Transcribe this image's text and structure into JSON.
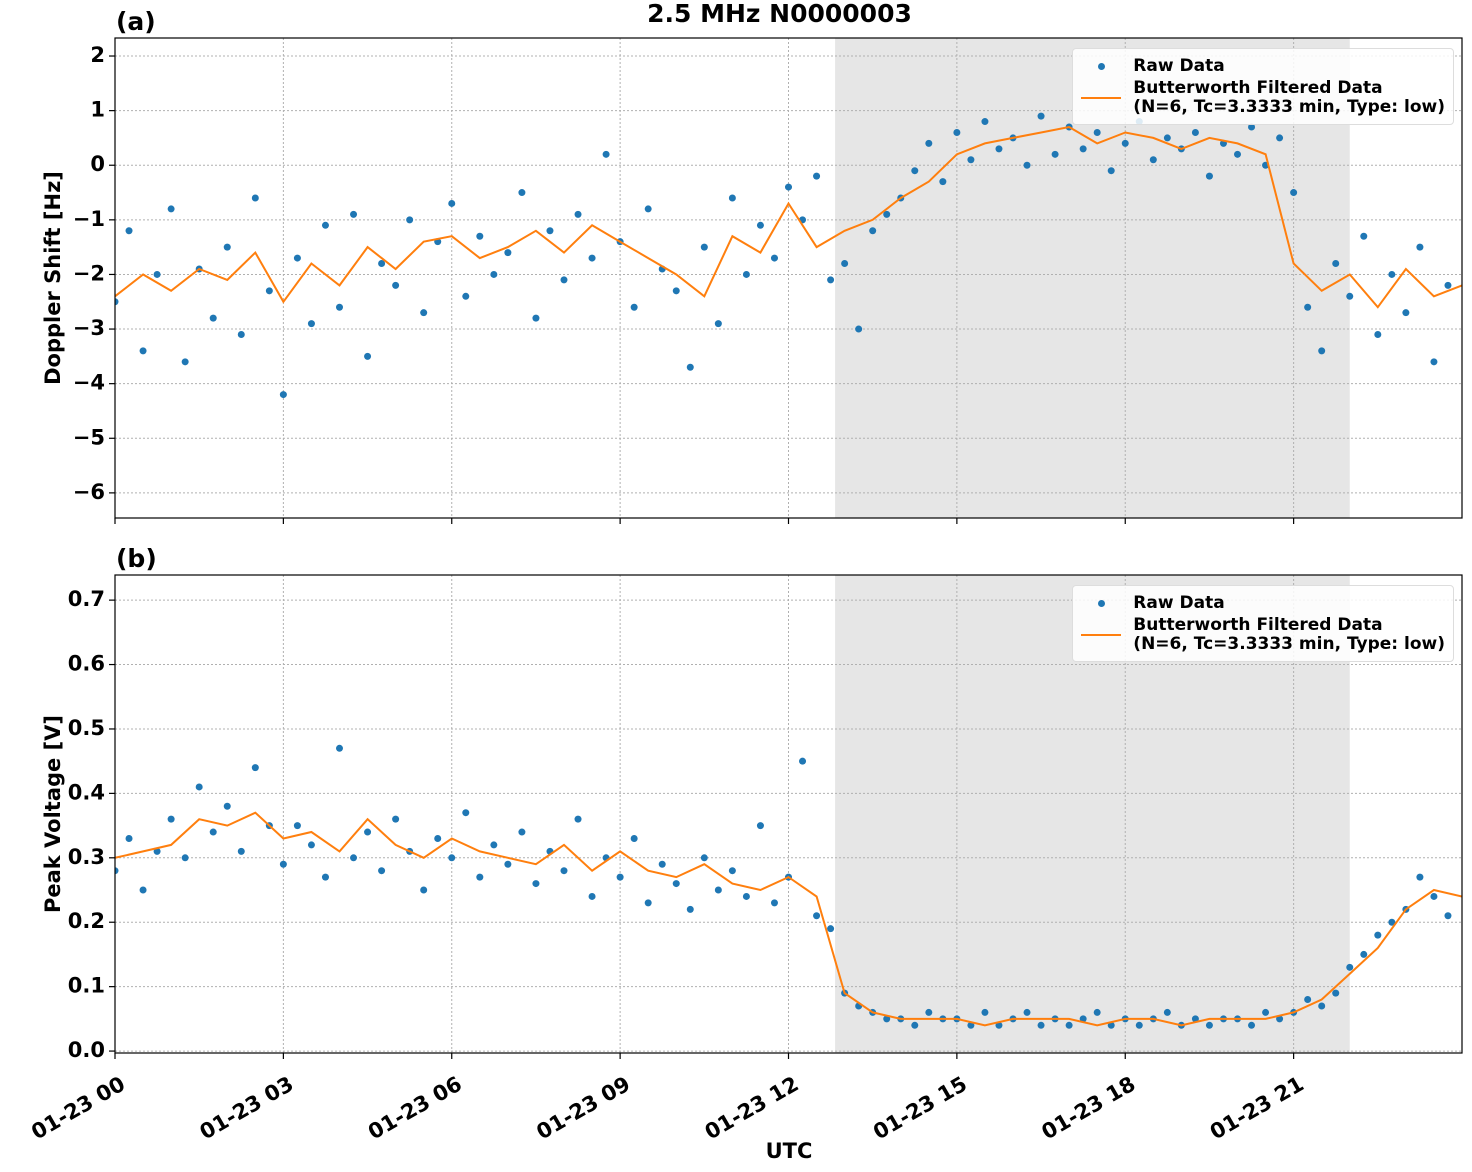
{
  "chart_data": [
    {
      "type": "scatter",
      "title": "2.5 MHz N0000003",
      "panel_label": "(a)",
      "y_label": "Doppler Shift [Hz]",
      "xlim": [
        0,
        24
      ],
      "xticks": [
        0,
        3,
        6,
        9,
        12,
        15,
        18,
        21
      ],
      "ylim": [
        -6.46,
        2.33
      ],
      "yticks": [
        {
          "value": -6,
          "label": "−6"
        },
        {
          "value": -5,
          "label": "−5"
        },
        {
          "value": -4,
          "label": "−4"
        },
        {
          "value": -3,
          "label": "−3"
        },
        {
          "value": -2,
          "label": "−2"
        },
        {
          "value": -1,
          "label": "−1"
        },
        0,
        1,
        2
      ],
      "grid": true,
      "legend": "upper right",
      "shaded_span": [
        12.83,
        22.0
      ],
      "series": [
        {
          "name": "Raw Data",
          "style": "marker",
          "color": "#1f77b4",
          "x": [
            0,
            0.25,
            0.5,
            0.75,
            1,
            1.25,
            1.5,
            1.75,
            2,
            2.25,
            2.5,
            2.75,
            3,
            3.25,
            3.5,
            3.75,
            4,
            4.25,
            4.5,
            4.75,
            5,
            5.25,
            5.5,
            5.75,
            6,
            6.25,
            6.5,
            6.75,
            7,
            7.25,
            7.5,
            7.75,
            8,
            8.25,
            8.5,
            8.75,
            9,
            9.25,
            9.5,
            9.75,
            10,
            10.25,
            10.5,
            10.75,
            11,
            11.25,
            11.5,
            11.75,
            12,
            12.25,
            12.5,
            12.75,
            13,
            13.25,
            13.5,
            13.75,
            14,
            14.25,
            14.5,
            14.75,
            15,
            15.25,
            15.5,
            15.75,
            16,
            16.25,
            16.5,
            16.75,
            17,
            17.25,
            17.5,
            17.75,
            18,
            18.25,
            18.5,
            18.75,
            19,
            19.25,
            19.5,
            19.75,
            20,
            20.25,
            20.5,
            20.75,
            21,
            21.25,
            21.5,
            21.75,
            22,
            22.25,
            22.5,
            22.75,
            23,
            23.25,
            23.5,
            23.75
          ],
          "values": [
            -2.5,
            -1.2,
            -3.4,
            -2.0,
            -0.8,
            -3.6,
            -1.9,
            -2.8,
            -1.5,
            -3.1,
            -0.6,
            -2.3,
            -4.2,
            -1.7,
            -2.9,
            -1.1,
            -2.6,
            -0.9,
            -3.5,
            -1.8,
            -2.2,
            -1.0,
            -2.7,
            -1.4,
            -0.7,
            -2.4,
            -1.3,
            -2.0,
            -1.6,
            -0.5,
            -2.8,
            -1.2,
            -2.1,
            -0.9,
            -1.7,
            0.2,
            -1.4,
            -2.6,
            -0.8,
            -1.9,
            -2.3,
            -3.7,
            -1.5,
            -2.9,
            -0.6,
            -2.0,
            -1.1,
            -1.7,
            -0.4,
            -1.0,
            -0.2,
            -2.1,
            -1.8,
            -3.0,
            -1.2,
            -0.9,
            -0.6,
            -0.1,
            0.4,
            -0.3,
            0.6,
            0.1,
            0.8,
            0.3,
            0.5,
            0.0,
            0.9,
            0.2,
            0.7,
            0.3,
            0.6,
            -0.1,
            0.4,
            0.8,
            0.1,
            0.5,
            0.3,
            0.6,
            -0.2,
            0.4,
            0.2,
            0.7,
            0.0,
            0.5,
            -0.5,
            -2.6,
            -3.4,
            -1.8,
            -2.4,
            -1.3,
            -3.1,
            -2.0,
            -2.7,
            -1.5,
            -3.6,
            -2.2
          ]
        },
        {
          "name": "Butterworth Filtered Data\n(N=6, Tc=3.3333 min, Type: low)",
          "style": "line",
          "color": "#ff7f0e",
          "x": [
            0,
            0.5,
            1,
            1.5,
            2,
            2.5,
            3,
            3.5,
            4,
            4.5,
            5,
            5.5,
            6,
            6.5,
            7,
            7.5,
            8,
            8.5,
            9,
            9.5,
            10,
            10.5,
            11,
            11.5,
            12,
            12.5,
            13,
            13.5,
            14,
            14.5,
            15,
            15.5,
            16,
            16.5,
            17,
            17.5,
            18,
            18.5,
            19,
            19.5,
            20,
            20.5,
            21,
            21.5,
            22,
            22.5,
            23,
            23.5,
            24
          ],
          "values": [
            -2.4,
            -2.0,
            -2.3,
            -1.9,
            -2.1,
            -1.6,
            -2.5,
            -1.8,
            -2.2,
            -1.5,
            -1.9,
            -1.4,
            -1.3,
            -1.7,
            -1.5,
            -1.2,
            -1.6,
            -1.1,
            -1.4,
            -1.7,
            -2.0,
            -2.4,
            -1.3,
            -1.6,
            -0.7,
            -1.5,
            -1.2,
            -1.0,
            -0.6,
            -0.3,
            0.2,
            0.4,
            0.5,
            0.6,
            0.7,
            0.4,
            0.6,
            0.5,
            0.3,
            0.5,
            0.4,
            0.2,
            -1.8,
            -2.3,
            -2.0,
            -2.6,
            -1.9,
            -2.4,
            -2.2
          ]
        }
      ]
    },
    {
      "type": "scatter",
      "panel_label": "(b)",
      "y_label": "Peak Voltage [V]",
      "x_label": "UTC",
      "xlim": [
        0,
        24
      ],
      "xticks": [
        {
          "value": 0,
          "label": "01-23 00"
        },
        {
          "value": 3,
          "label": "01-23 03"
        },
        {
          "value": 6,
          "label": "01-23 06"
        },
        {
          "value": 9,
          "label": "01-23 09"
        },
        {
          "value": 12,
          "label": "01-23 12"
        },
        {
          "value": 15,
          "label": "01-23 15"
        },
        {
          "value": 18,
          "label": "01-23 18"
        },
        {
          "value": 21,
          "label": "01-23 21"
        }
      ],
      "ylim": [
        -0.003,
        0.739
      ],
      "yticks": [
        {
          "value": 0,
          "label": "0.0"
        },
        0.1,
        0.2,
        0.3,
        0.4,
        0.5,
        0.6,
        0.7
      ],
      "grid": true,
      "legend": "upper right",
      "shaded_span": [
        12.83,
        22.0
      ],
      "series": [
        {
          "name": "Raw Data",
          "style": "marker",
          "color": "#1f77b4",
          "x": [
            0,
            0.25,
            0.5,
            0.75,
            1,
            1.25,
            1.5,
            1.75,
            2,
            2.25,
            2.5,
            2.75,
            3,
            3.25,
            3.5,
            3.75,
            4,
            4.25,
            4.5,
            4.75,
            5,
            5.25,
            5.5,
            5.75,
            6,
            6.25,
            6.5,
            6.75,
            7,
            7.25,
            7.5,
            7.75,
            8,
            8.25,
            8.5,
            8.75,
            9,
            9.25,
            9.5,
            9.75,
            10,
            10.25,
            10.5,
            10.75,
            11,
            11.25,
            11.5,
            11.75,
            12,
            12.25,
            12.5,
            12.75,
            13,
            13.25,
            13.5,
            13.75,
            14,
            14.25,
            14.5,
            14.75,
            15,
            15.25,
            15.5,
            15.75,
            16,
            16.25,
            16.5,
            16.75,
            17,
            17.25,
            17.5,
            17.75,
            18,
            18.25,
            18.5,
            18.75,
            19,
            19.25,
            19.5,
            19.75,
            20,
            20.25,
            20.5,
            20.75,
            21,
            21.25,
            21.5,
            21.75,
            22,
            22.25,
            22.5,
            22.75,
            23,
            23.25,
            23.5,
            23.75
          ],
          "values": [
            0.28,
            0.33,
            0.25,
            0.31,
            0.36,
            0.3,
            0.41,
            0.34,
            0.38,
            0.31,
            0.44,
            0.35,
            0.29,
            0.35,
            0.32,
            0.27,
            0.47,
            0.3,
            0.34,
            0.28,
            0.36,
            0.31,
            0.25,
            0.33,
            0.3,
            0.37,
            0.27,
            0.32,
            0.29,
            0.34,
            0.26,
            0.31,
            0.28,
            0.36,
            0.24,
            0.3,
            0.27,
            0.33,
            0.23,
            0.29,
            0.26,
            0.22,
            0.3,
            0.25,
            0.28,
            0.24,
            0.35,
            0.23,
            0.27,
            0.45,
            0.21,
            0.19,
            0.09,
            0.07,
            0.06,
            0.05,
            0.05,
            0.04,
            0.06,
            0.05,
            0.05,
            0.04,
            0.06,
            0.04,
            0.05,
            0.06,
            0.04,
            0.05,
            0.04,
            0.05,
            0.06,
            0.04,
            0.05,
            0.04,
            0.05,
            0.06,
            0.04,
            0.05,
            0.04,
            0.05,
            0.05,
            0.04,
            0.06,
            0.05,
            0.06,
            0.08,
            0.07,
            0.09,
            0.13,
            0.15,
            0.18,
            0.2,
            0.22,
            0.27,
            0.24,
            0.21
          ]
        },
        {
          "name": "Butterworth Filtered Data\n(N=6, Tc=3.3333 min, Type: low)",
          "style": "line",
          "color": "#ff7f0e",
          "x": [
            0,
            0.5,
            1,
            1.5,
            2,
            2.5,
            3,
            3.5,
            4,
            4.5,
            5,
            5.5,
            6,
            6.5,
            7,
            7.5,
            8,
            8.5,
            9,
            9.5,
            10,
            10.5,
            11,
            11.5,
            12,
            12.5,
            13,
            13.5,
            14,
            14.5,
            15,
            15.5,
            16,
            16.5,
            17,
            17.5,
            18,
            18.5,
            19,
            19.5,
            20,
            20.5,
            21,
            21.5,
            22,
            22.5,
            23,
            23.5,
            24
          ],
          "values": [
            0.3,
            0.31,
            0.32,
            0.36,
            0.35,
            0.37,
            0.33,
            0.34,
            0.31,
            0.36,
            0.32,
            0.3,
            0.33,
            0.31,
            0.3,
            0.29,
            0.32,
            0.28,
            0.31,
            0.28,
            0.27,
            0.29,
            0.26,
            0.25,
            0.27,
            0.24,
            0.09,
            0.06,
            0.05,
            0.05,
            0.05,
            0.04,
            0.05,
            0.05,
            0.05,
            0.04,
            0.05,
            0.05,
            0.04,
            0.05,
            0.05,
            0.05,
            0.06,
            0.08,
            0.12,
            0.16,
            0.22,
            0.25,
            0.24
          ]
        }
      ]
    }
  ]
}
